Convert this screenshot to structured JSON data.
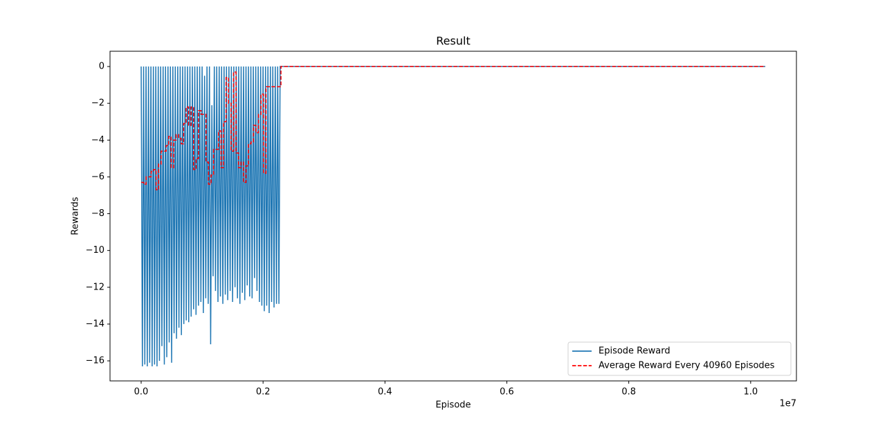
{
  "chart_data": {
    "type": "line",
    "title": "Result",
    "x_label": "Episode",
    "y_label": "Rewards",
    "x_offset_label": "1e7",
    "xlim": [
      -511000,
      10751000
    ],
    "ylim": [
      -17.09,
      0.83
    ],
    "xticks": [
      {
        "value": 0,
        "label": "0.0"
      },
      {
        "value": 2000000,
        "label": "0.2"
      },
      {
        "value": 4000000,
        "label": "0.4"
      },
      {
        "value": 6000000,
        "label": "0.6"
      },
      {
        "value": 8000000,
        "label": "0.8"
      },
      {
        "value": 10000000,
        "label": "1.0"
      }
    ],
    "yticks": [
      0,
      {
        "value": -2,
        "label": "−2"
      },
      {
        "value": -4,
        "label": "−4"
      },
      {
        "value": -6,
        "label": "−6"
      },
      {
        "value": -8,
        "label": "−8"
      },
      {
        "value": -10,
        "label": "−10"
      },
      {
        "value": -12,
        "label": "−12"
      },
      {
        "value": -14,
        "label": "−14"
      },
      {
        "value": -16,
        "label": "−16"
      }
    ],
    "legend": "lower right",
    "series": [
      {
        "name": "Episode Reward",
        "color": "#1f77b4",
        "linestyle": "solid",
        "drawstyle": "default",
        "x": [
          0,
          20000,
          40000,
          60000,
          80000,
          100000,
          120000,
          140000,
          160000,
          180000,
          200000,
          220000,
          240000,
          260000,
          280000,
          300000,
          320000,
          340000,
          360000,
          380000,
          400000,
          420000,
          440000,
          460000,
          480000,
          500000,
          520000,
          540000,
          560000,
          580000,
          600000,
          620000,
          640000,
          660000,
          680000,
          700000,
          720000,
          740000,
          760000,
          780000,
          800000,
          820000,
          840000,
          860000,
          880000,
          900000,
          920000,
          940000,
          960000,
          980000,
          1000000,
          1020000,
          1040000,
          1060000,
          1080000,
          1100000,
          1120000,
          1140000,
          1160000,
          1180000,
          1200000,
          1220000,
          1240000,
          1260000,
          1280000,
          1300000,
          1320000,
          1340000,
          1360000,
          1380000,
          1400000,
          1420000,
          1440000,
          1460000,
          1480000,
          1500000,
          1520000,
          1540000,
          1560000,
          1580000,
          1600000,
          1620000,
          1640000,
          1660000,
          1680000,
          1700000,
          1720000,
          1740000,
          1760000,
          1780000,
          1800000,
          1820000,
          1840000,
          1860000,
          1880000,
          1900000,
          1920000,
          1940000,
          1960000,
          1980000,
          2000000,
          2020000,
          2040000,
          2060000,
          2080000,
          2100000,
          2120000,
          2140000,
          2160000,
          2180000,
          2200000,
          2220000,
          2240000,
          2260000,
          2280000,
          10240000
        ],
        "values": [
          0,
          -16.3,
          0,
          -16.2,
          0,
          -16.3,
          0,
          -16.1,
          0,
          -16.3,
          0,
          -16.2,
          0,
          -16.3,
          0,
          -16.0,
          0,
          -15.2,
          0,
          -16.2,
          0,
          -15.8,
          0,
          -15.0,
          0,
          -16.1,
          0,
          -14.5,
          0,
          -14.8,
          0,
          -14.2,
          0,
          -14.6,
          0,
          -14.0,
          0,
          -13.8,
          0,
          -13.9,
          0,
          -13.6,
          0,
          -13.2,
          0,
          -13.5,
          0,
          -13.0,
          0,
          -12.8,
          0,
          -13.4,
          -0.5,
          -12.6,
          0,
          -12.9,
          0,
          -15.1,
          -2.1,
          -11.4,
          0,
          -12.2,
          0,
          -12.8,
          0,
          -12.5,
          0,
          -12.9,
          0,
          -12.4,
          0,
          -12.7,
          0,
          -12.2,
          0,
          -12.8,
          0,
          -12.0,
          0,
          -12.6,
          0,
          -12.9,
          0,
          -12.3,
          0,
          -12.7,
          0,
          -11.9,
          0,
          -12.5,
          0,
          -12.6,
          0,
          -11.5,
          0,
          -12.2,
          0,
          -12.8,
          0,
          -13.0,
          0,
          -13.3,
          0,
          -13.0,
          0,
          -13.4,
          0,
          -12.8,
          0,
          -13.1,
          0,
          -12.9,
          0,
          -12.9,
          0,
          0
        ]
      },
      {
        "name": "Average Reward Every 40960 Episodes",
        "color": "#ff0000",
        "linestyle": "dashed",
        "drawstyle": "steps-post",
        "x": [
          0,
          40960,
          81920,
          122880,
          163840,
          204800,
          245760,
          286720,
          327680,
          368640,
          409600,
          450560,
          491520,
          532480,
          573440,
          614400,
          655360,
          696320,
          737280,
          778240,
          819200,
          860160,
          901120,
          942080,
          983040,
          1024000,
          1064960,
          1105920,
          1146880,
          1187840,
          1228800,
          1269760,
          1310720,
          1351680,
          1392640,
          1433600,
          1474560,
          1515520,
          1556480,
          1597440,
          1638400,
          1679360,
          1720320,
          1761280,
          1802240,
          1843200,
          1884160,
          1925120,
          1966080,
          2007040,
          2048000,
          2088960,
          2129920,
          2170880,
          2211840,
          2252800,
          2293760,
          10240000
        ],
        "values": [
          -6.3,
          -6.4,
          -6.0,
          -6.0,
          -5.7,
          -5.6,
          -6.7,
          -5.3,
          -4.6,
          -4.6,
          -4.3,
          -3.8,
          -5.5,
          -4.0,
          -3.7,
          -3.9,
          -4.2,
          -3.1,
          -2.2,
          -3.2,
          -2.2,
          -5.6,
          -5.0,
          -2.4,
          -2.6,
          -2.6,
          -5.2,
          -6.4,
          -5.9,
          -4.5,
          -4.5,
          -3.5,
          -5.5,
          -3.0,
          -0.6,
          -2.0,
          -4.6,
          -0.3,
          -4.7,
          -5.5,
          -5.2,
          -6.3,
          -5.4,
          -4.2,
          -4.1,
          -3.2,
          -3.6,
          -2.6,
          -1.5,
          -5.8,
          -1.1,
          -1.1,
          -1.1,
          -1.1,
          -1.1,
          -1.1,
          0,
          0
        ]
      }
    ]
  }
}
